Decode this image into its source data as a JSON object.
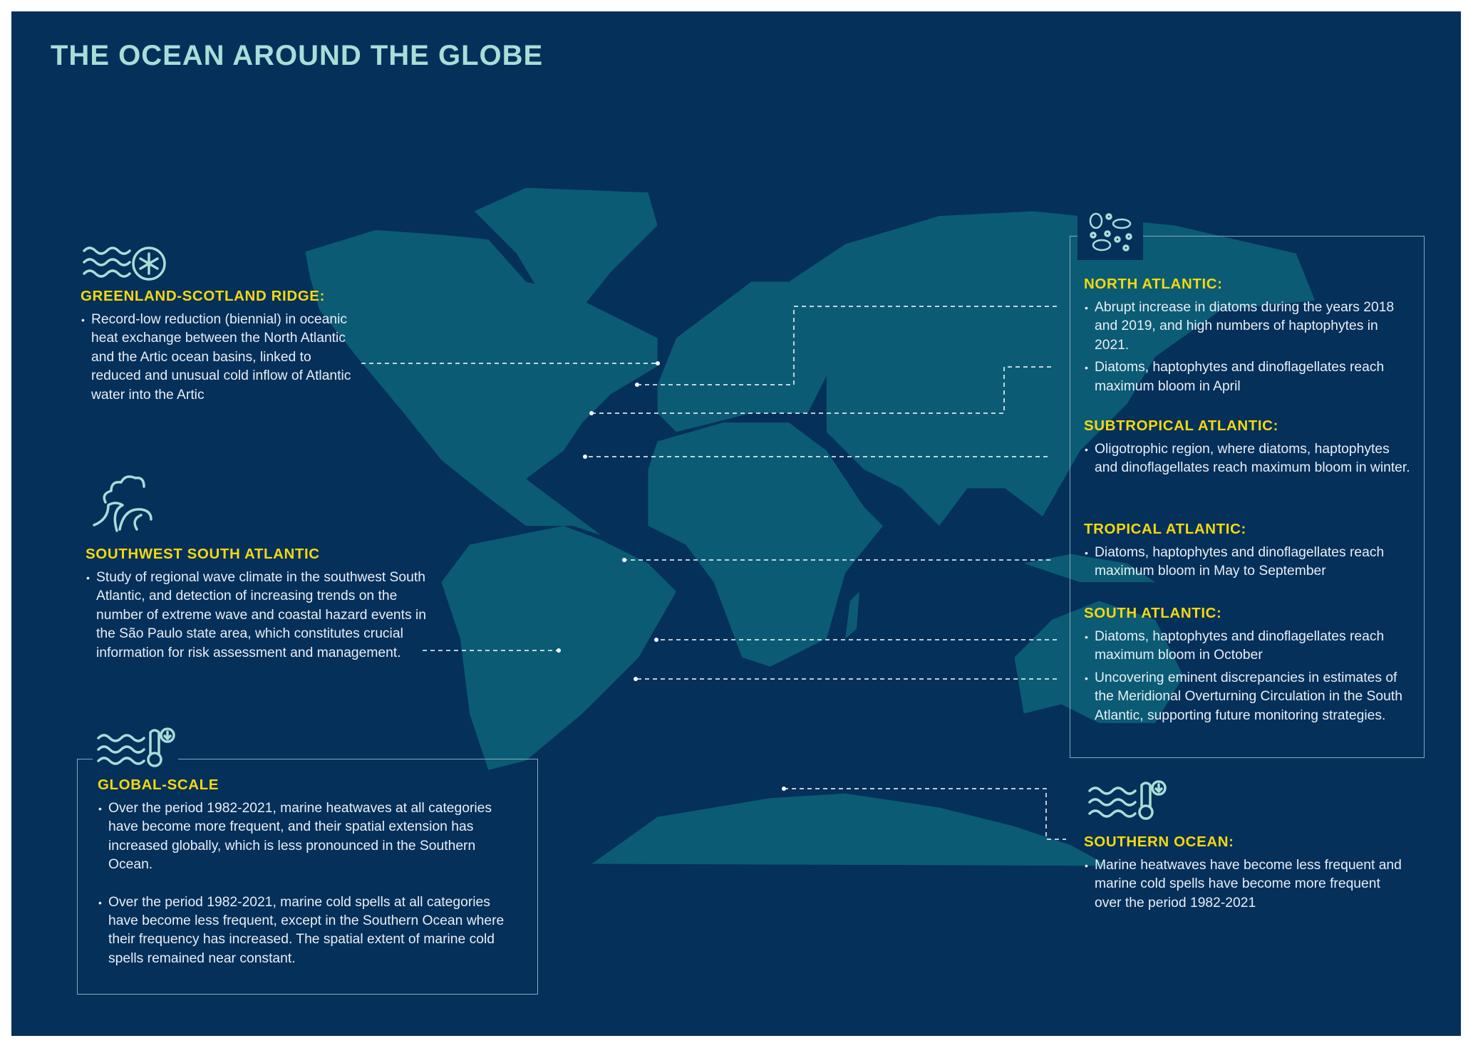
{
  "title": "THE OCEAN AROUND THE GLOBE",
  "colors": {
    "background": "#04305a",
    "land": "#0b5b74",
    "title": "#a9ddd8",
    "heading": "#f5d80e",
    "text": "#e9eef3",
    "connector": "#ffffff"
  },
  "icons": {
    "greenland": [
      "waves-icon",
      "snowflake-icon"
    ],
    "southwest": "storm-wave-icon",
    "global": [
      "waves-icon",
      "thermometer-icon"
    ],
    "right_box": "plankton-icon",
    "southern": [
      "waves-icon",
      "thermometer-icon"
    ]
  },
  "sections": {
    "greenland": {
      "heading": "GREENLAND-SCOTLAND RIDGE:",
      "bullets": [
        "Record-low reduction (biennial) in oceanic heat exchange between the North Atlantic and the Artic ocean basins, linked to reduced and unusual cold inflow of Atlantic water into the Artic"
      ]
    },
    "southwest": {
      "heading": "SOUTHWEST SOUTH ATLANTIC",
      "bullets": [
        "Study of regional wave climate in the southwest South Atlantic, and detection of increasing trends on the number of extreme wave and coastal hazard events in the São Paulo state area, which constitutes crucial information for risk assessment and management."
      ]
    },
    "global": {
      "heading": "GLOBAL-SCALE",
      "bullets": [
        "Over the period 1982-2021, marine heatwaves at all categories have become more frequent, and their spatial extension has increased globally, which is less pronounced in the Southern Ocean.",
        "Over the period 1982-2021, marine cold spells at all categories have become less frequent, except in the Southern Ocean where their frequency has increased. The spatial extent of marine cold spells remained near constant."
      ]
    },
    "north_atlantic": {
      "heading": "NORTH ATLANTIC:",
      "bullets": [
        "Abrupt increase in diatoms during the years 2018 and 2019, and high numbers of haptophytes in 2021.",
        "Diatoms, haptophytes and dinoflagellates reach maximum bloom in April"
      ]
    },
    "subtropical": {
      "heading": "SUBTROPICAL ATLANTIC:",
      "bullets": [
        "Oligotrophic region, where diatoms, haptophytes and dinoflagellates reach maximum bloom in winter."
      ]
    },
    "tropical": {
      "heading": "TROPICAL ATLANTIC:",
      "bullets": [
        "Diatoms, haptophytes and dinoflagellates reach maximum bloom in May to September"
      ]
    },
    "south_atlantic": {
      "heading": "SOUTH ATLANTIC:",
      "bullets": [
        "Diatoms, haptophytes and dinoflagellates reach maximum bloom in October",
        "Uncovering eminent discrepancies in estimates of the Meridional Overturning Circulation in the South Atlantic, supporting future monitoring strategies."
      ]
    },
    "southern": {
      "heading": "SOUTHERN OCEAN:",
      "bullets": [
        "Marine heatwaves have become less frequent and marine cold spells have become more frequent over the period 1982-2021"
      ]
    }
  }
}
